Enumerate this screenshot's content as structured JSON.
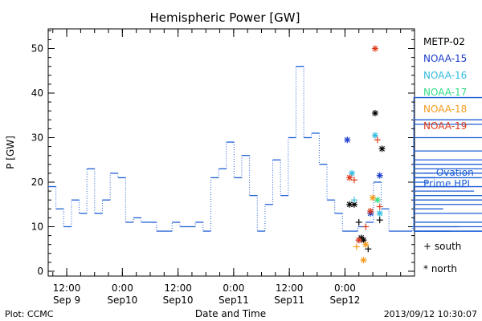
{
  "chart_data": {
    "type": "line",
    "title": "Hemispheric Power [GW]",
    "xlabel": "Date and Time",
    "ylabel": "P [GW]",
    "ylim": [
      0,
      55
    ],
    "yticks": [
      0,
      10,
      20,
      30,
      40,
      50
    ],
    "xlim": [
      "2013-09-09 08:00",
      "2013-09-12 15:00"
    ],
    "xticks": [
      {
        "t": "2013-09-09 12:00",
        "line1": "12:00",
        "line2": "Sep 9"
      },
      {
        "t": "2013-09-10 00:00",
        "line1": "0:00",
        "line2": "Sep10"
      },
      {
        "t": "2013-09-10 12:00",
        "line1": "12:00",
        "line2": "Sep10"
      },
      {
        "t": "2013-09-11 00:00",
        "line1": "0:00",
        "line2": "Sep11"
      },
      {
        "t": "2013-09-11 12:00",
        "line1": "12:00",
        "line2": "Sep11"
      },
      {
        "t": "2013-09-12 00:00",
        "line1": "0:00",
        "line2": "Sep12"
      }
    ],
    "ovation": {
      "name": "Ovation Prime HPI",
      "legend_lines": [
        "— Ovation",
        "Prime HPI"
      ],
      "color": "#1f5fd6",
      "step_hours": 1.67,
      "start": "2013-09-09 08:00",
      "values": [
        19,
        14,
        10,
        16,
        13,
        23,
        13,
        16,
        22,
        21,
        11,
        12,
        11,
        11,
        9,
        9,
        11,
        10,
        10,
        11,
        9,
        21,
        23,
        29,
        21,
        26,
        17,
        9,
        15,
        25,
        17,
        30,
        46,
        30,
        31,
        24,
        16,
        13,
        9,
        9,
        10,
        11,
        20,
        14,
        9,
        9,
        9,
        10,
        9,
        20,
        21,
        14,
        9,
        10,
        19,
        18,
        21,
        33,
        23,
        39,
        27,
        10,
        11,
        34,
        25,
        24,
        22,
        17,
        22,
        15,
        13,
        17,
        9,
        19,
        30,
        16,
        9
      ]
    },
    "satellites": [
      {
        "name": "METP-02",
        "color": "#000000",
        "south": [
          {
            "t": "2013-09-12 03:00",
            "v": 11
          },
          {
            "t": "2013-09-12 05:00",
            "v": 5
          },
          {
            "t": "2013-09-12 07:30",
            "v": 11.5
          }
        ],
        "north": [
          {
            "t": "2013-09-12 01:00",
            "v": 15
          },
          {
            "t": "2013-09-12 02:00",
            "v": 15
          },
          {
            "t": "2013-09-12 03:30",
            "v": 7.5
          },
          {
            "t": "2013-09-12 06:30",
            "v": 35.5
          },
          {
            "t": "2013-09-12 08:00",
            "v": 27.5
          },
          {
            "t": "2013-09-12 04:00",
            "v": 7
          }
        ]
      },
      {
        "name": "NOAA-15",
        "color": "#1a3ccc",
        "south": [
          {
            "t": "2013-09-12 03:00",
            "v": 7
          }
        ],
        "north": [
          {
            "t": "2013-09-12 00:30",
            "v": 29.5
          },
          {
            "t": "2013-09-12 05:30",
            "v": 13
          },
          {
            "t": "2013-09-12 07:30",
            "v": 21.5
          }
        ]
      },
      {
        "name": "NOAA-16",
        "color": "#33bbe0",
        "south": [
          {
            "t": "2013-09-12 02:00",
            "v": 16
          }
        ],
        "north": [
          {
            "t": "2013-09-12 01:30",
            "v": 22
          },
          {
            "t": "2013-09-12 06:30",
            "v": 30.5
          },
          {
            "t": "2013-09-12 07:30",
            "v": 13
          }
        ]
      },
      {
        "name": "NOAA-17",
        "color": "#33dd88",
        "south": [],
        "north": [
          {
            "t": "2013-09-12 07:00",
            "v": 16
          }
        ]
      },
      {
        "name": "NOAA-18",
        "color": "#f39c1f",
        "south": [
          {
            "t": "2013-09-12 02:30",
            "v": 5.5
          }
        ],
        "north": [
          {
            "t": "2013-09-12 04:00",
            "v": 2.5
          },
          {
            "t": "2013-09-12 06:00",
            "v": 16.5
          },
          {
            "t": "2013-09-12 04:30",
            "v": 6
          }
        ]
      },
      {
        "name": "NOAA-19",
        "color": "#dd3b1a",
        "south": [
          {
            "t": "2013-09-12 02:00",
            "v": 20.5
          },
          {
            "t": "2013-09-12 04:30",
            "v": 10
          },
          {
            "t": "2013-09-12 07:00",
            "v": 29.5
          },
          {
            "t": "2013-09-12 07:30",
            "v": 14.5
          }
        ],
        "north": [
          {
            "t": "2013-09-12 06:30",
            "v": 50
          },
          {
            "t": "2013-09-12 01:00",
            "v": 21
          },
          {
            "t": "2013-09-12 03:00",
            "v": 7
          },
          {
            "t": "2013-09-12 05:30",
            "v": 13.5
          }
        ]
      }
    ],
    "symbol_legend": [
      {
        "symbol": "+",
        "label": "south"
      },
      {
        "symbol": "*",
        "label": "north"
      }
    ]
  },
  "footer": {
    "left": "Plot: CCMC",
    "right": "2013/09/12  10:30:07"
  }
}
